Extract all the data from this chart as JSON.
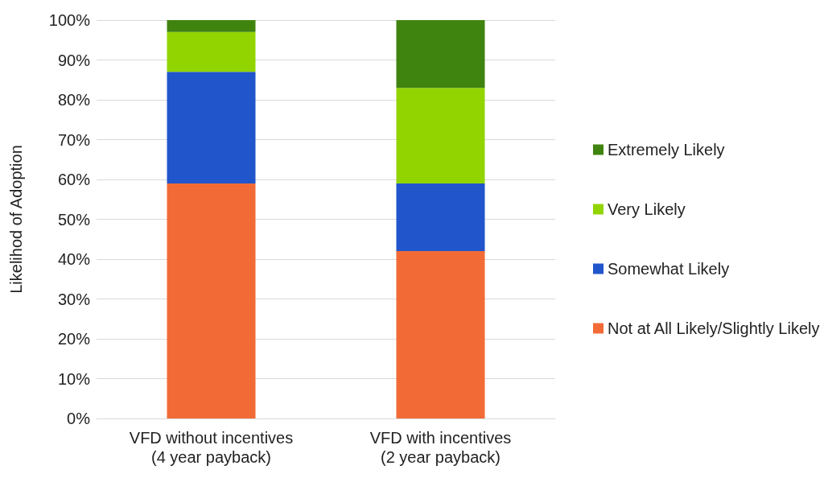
{
  "chart_data": {
    "type": "bar",
    "stacked": true,
    "ylabel": "Likelihod of Adoption",
    "categories": [
      "VFD without incentives\n(4 year payback)",
      "VFD with incentives\n(2 year payback)"
    ],
    "series": [
      {
        "name": "Not at All Likely/Slightly Likely",
        "color": "#f26b36",
        "values": [
          59,
          42
        ]
      },
      {
        "name": "Somewhat Likely",
        "color": "#2155cb",
        "values": [
          28,
          17
        ]
      },
      {
        "name": "Very Likely",
        "color": "#92d400",
        "values": [
          10,
          24
        ]
      },
      {
        "name": "Extremely Likely",
        "color": "#3f840f",
        "values": [
          3,
          17
        ]
      }
    ],
    "ylim": [
      0,
      100
    ],
    "yticks": [
      {
        "value": 0,
        "label": "0%"
      },
      {
        "value": 10,
        "label": "10%"
      },
      {
        "value": 20,
        "label": "20%"
      },
      {
        "value": 30,
        "label": "30%"
      },
      {
        "value": 40,
        "label": "40%"
      },
      {
        "value": 50,
        "label": "50%"
      },
      {
        "value": 60,
        "label": "60%"
      },
      {
        "value": 70,
        "label": "70%"
      },
      {
        "value": 80,
        "label": "80%"
      },
      {
        "value": 90,
        "label": "90%"
      },
      {
        "value": 100,
        "label": "100%"
      }
    ],
    "grid": "y",
    "legend": "right"
  }
}
